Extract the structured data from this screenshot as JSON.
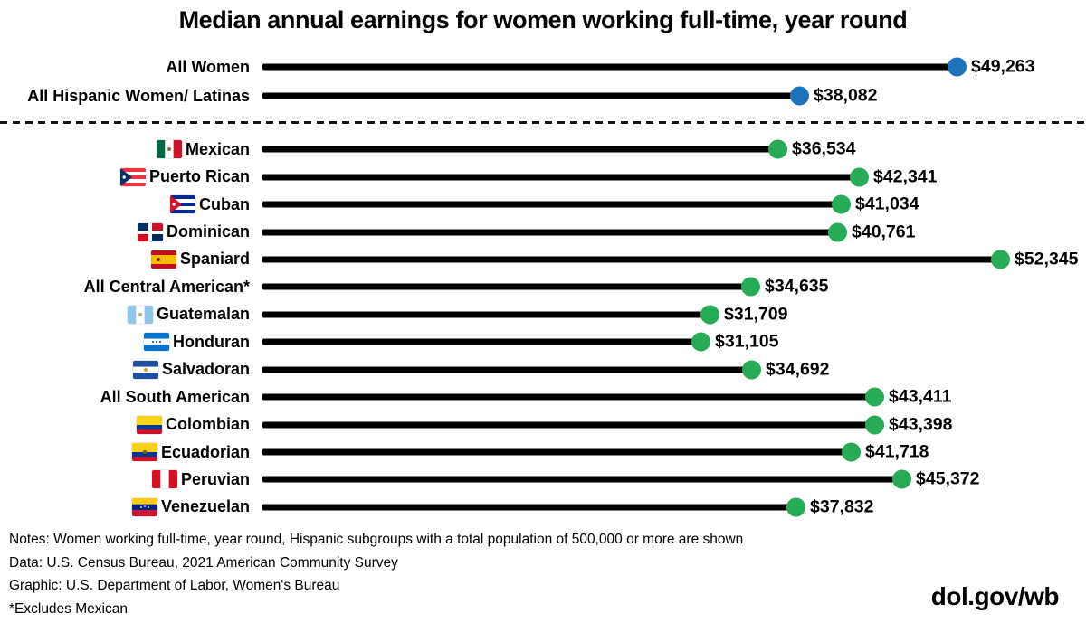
{
  "title": "Median annual earnings for women working full-time, year round",
  "colors": {
    "blue": "#1d74bd",
    "green": "#28ab57",
    "line": "#000000"
  },
  "chart_data": {
    "type": "bar",
    "subtype": "lollipop",
    "orientation": "horizontal",
    "title": "Median annual earnings for women working full-time, year round",
    "value_unit": "USD",
    "xlim": [
      0,
      53000
    ],
    "grid": false,
    "legend": "none",
    "groups": [
      {
        "name": "overall",
        "rows": [
          {
            "label": "All Women",
            "value": 49263,
            "display": "$49,263",
            "dot_color_key": "blue",
            "flag": null
          },
          {
            "label": "All Hispanic Women/ Latinas",
            "value": 38082,
            "display": "$38,082",
            "dot_color_key": "blue",
            "flag": null
          }
        ]
      },
      {
        "name": "hispanic-subgroups",
        "rows": [
          {
            "label": "Mexican",
            "value": 36534,
            "display": "$36,534",
            "dot_color_key": "green",
            "flag": "mexico"
          },
          {
            "label": "Puerto Rican",
            "value": 42341,
            "display": "$42,341",
            "dot_color_key": "green",
            "flag": "puerto_rico"
          },
          {
            "label": "Cuban",
            "value": 41034,
            "display": "$41,034",
            "dot_color_key": "green",
            "flag": "cuba"
          },
          {
            "label": "Dominican",
            "value": 40761,
            "display": "$40,761",
            "dot_color_key": "green",
            "flag": "dominican_republic"
          },
          {
            "label": "Spaniard",
            "value": 52345,
            "display": "$52,345",
            "dot_color_key": "green",
            "flag": "spain"
          },
          {
            "label": "All Central American*",
            "value": 34635,
            "display": "$34,635",
            "dot_color_key": "green",
            "flag": null
          },
          {
            "label": "Guatemalan",
            "value": 31709,
            "display": "$31,709",
            "dot_color_key": "green",
            "flag": "guatemala"
          },
          {
            "label": "Honduran",
            "value": 31105,
            "display": "$31,105",
            "dot_color_key": "green",
            "flag": "honduras"
          },
          {
            "label": "Salvadoran",
            "value": 34692,
            "display": "$34,692",
            "dot_color_key": "green",
            "flag": "el_salvador"
          },
          {
            "label": "All South American",
            "value": 43411,
            "display": "$43,411",
            "dot_color_key": "green",
            "flag": null
          },
          {
            "label": "Colombian",
            "value": 43398,
            "display": "$43,398",
            "dot_color_key": "green",
            "flag": "colombia"
          },
          {
            "label": "Ecuadorian",
            "value": 41718,
            "display": "$41,718",
            "dot_color_key": "green",
            "flag": "ecuador"
          },
          {
            "label": "Peruvian",
            "value": 45372,
            "display": "$45,372",
            "dot_color_key": "green",
            "flag": "peru"
          },
          {
            "label": "Venezuelan",
            "value": 37832,
            "display": "$37,832",
            "dot_color_key": "green",
            "flag": "venezuela"
          }
        ]
      }
    ]
  },
  "footer": {
    "notes": [
      "Notes: Women working full-time, year round, Hispanic subgroups with a total population of 500,000 or more are shown",
      "Data: U.S. Census Bureau, 2021 American Community Survey",
      "Graphic: U.S. Department of Labor, Women's Bureau",
      "*Excludes Mexican"
    ],
    "brand": "dol.gov/wb"
  }
}
